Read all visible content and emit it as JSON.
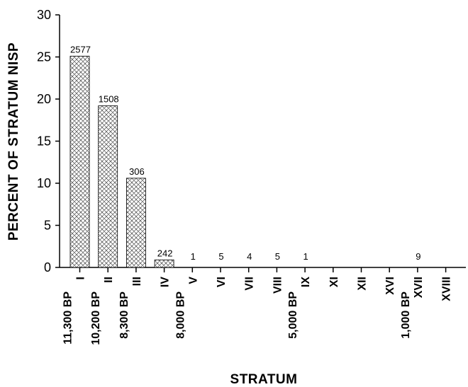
{
  "chart_data": {
    "type": "bar",
    "xlabel": "STRATUM",
    "ylabel": "PERCENT OF STRATUM NISP",
    "ylim": [
      0,
      30
    ],
    "yticks": [
      0,
      5,
      10,
      15,
      20,
      25,
      30
    ],
    "grid": false,
    "categories": [
      "I",
      "II",
      "III",
      "IV",
      "V",
      "VI",
      "VII",
      "VIII",
      "IX",
      "XI",
      "XII",
      "XVI",
      "XVII",
      "XVIII"
    ],
    "values": [
      25.1,
      19.2,
      10.6,
      0.9,
      0,
      0,
      0,
      0,
      0,
      0,
      0,
      0,
      0,
      0
    ],
    "data_labels": [
      "2577",
      "1508",
      "306",
      "242",
      "1",
      "5",
      "4",
      "5",
      "1",
      "",
      "",
      "",
      "9",
      ""
    ],
    "date_labels": [
      {
        "after_category": "I",
        "text": "11,300 BP"
      },
      {
        "after_category": "II",
        "text": "10,200 BP"
      },
      {
        "after_category": "III",
        "text": "8,300 BP"
      },
      {
        "after_category": "V",
        "text": "8,000 BP"
      },
      {
        "after_category": "IX",
        "text": "5,000 BP"
      },
      {
        "after_category": "XVII",
        "text": "1,000 BP"
      }
    ]
  }
}
